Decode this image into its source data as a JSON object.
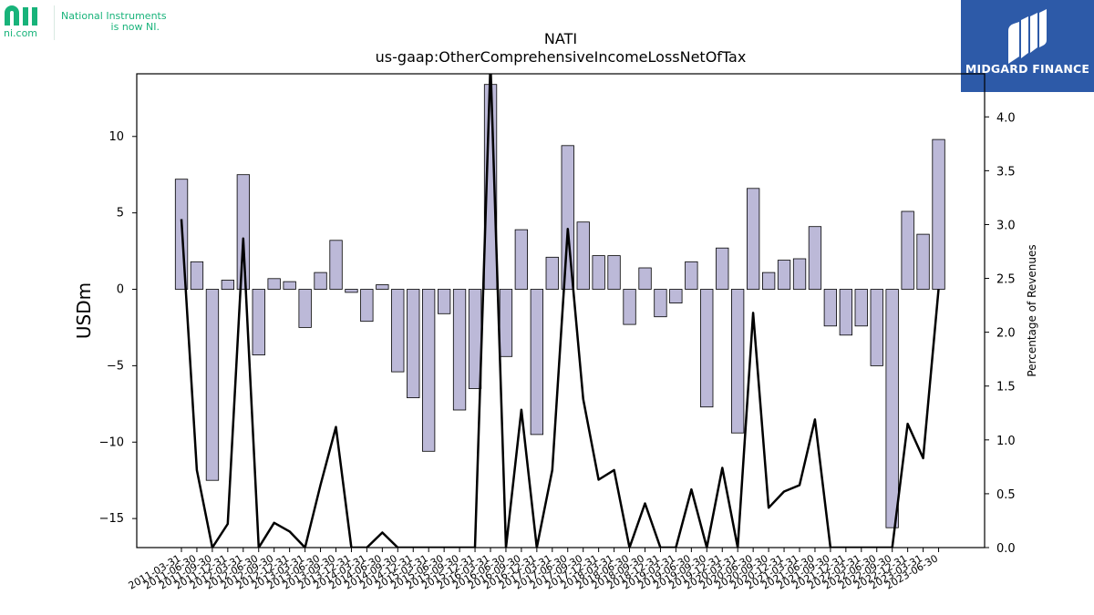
{
  "branding": {
    "ni_mark": "ni",
    "ni_domain": "ni.com",
    "ni_tagline_1": "National Instruments",
    "ni_tagline_2": "is now NI.",
    "midgard_name": "MIDGARD FINANCE"
  },
  "colors": {
    "bar_fill": "#bcb9d8",
    "line": "#000000",
    "ni_green": "#18b37a",
    "midgard_blue": "#2d5aa8"
  },
  "chart_data": {
    "type": "bar",
    "title": "NATI",
    "subtitle": "us-gaap:OtherComprehensiveIncomeLossNetOfTax",
    "ylabel": "USDm",
    "y2label": "Percentage of Revenues",
    "ylim": [
      -16.9,
      14.1
    ],
    "y2lim": [
      0,
      4.4
    ],
    "yticks": [
      -15,
      -10,
      -5,
      0,
      5,
      10
    ],
    "y2ticks": [
      0.0,
      0.5,
      1.0,
      1.5,
      2.0,
      2.5,
      3.0,
      3.5,
      4.0
    ],
    "grid": false,
    "categories": [
      "2011-03-31",
      "2011-06-30",
      "2011-09-30",
      "2011-12-31",
      "2012-03-31",
      "2012-06-30",
      "2012-09-30",
      "2012-12-31",
      "2013-03-31",
      "2013-06-30",
      "2013-09-30",
      "2013-12-31",
      "2014-03-31",
      "2014-06-30",
      "2014-09-30",
      "2014-12-31",
      "2015-03-31",
      "2015-06-30",
      "2015-09-30",
      "2015-12-31",
      "2016-03-31",
      "2016-06-30",
      "2016-09-30",
      "2016-12-31",
      "2017-03-31",
      "2017-06-30",
      "2017-09-30",
      "2017-12-31",
      "2018-03-31",
      "2018-06-30",
      "2018-09-30",
      "2018-12-31",
      "2019-03-31",
      "2019-06-30",
      "2019-09-30",
      "2019-12-31",
      "2020-03-31",
      "2020-06-30",
      "2020-09-30",
      "2020-12-31",
      "2021-03-31",
      "2021-06-30",
      "2021-09-30",
      "2021-12-31",
      "2022-03-31",
      "2022-06-30",
      "2022-09-30",
      "2022-12-31",
      "2023-03-31",
      "2023-06-30"
    ],
    "series": [
      {
        "kind": "bar",
        "axis": "left",
        "values": [
          7.2,
          1.8,
          -12.5,
          0.6,
          7.5,
          -4.3,
          0.7,
          0.5,
          -2.5,
          1.1,
          3.2,
          -0.2,
          -2.1,
          0.3,
          -5.4,
          -7.1,
          -10.6,
          -1.6,
          -7.9,
          -6.5,
          13.4,
          -4.4,
          3.9,
          -9.5,
          2.1,
          9.4,
          4.4,
          2.2,
          2.2,
          -2.3,
          1.4,
          -1.8,
          -0.9,
          1.8,
          -7.7,
          2.7,
          -9.4,
          6.6,
          1.1,
          1.9,
          2.0,
          4.1,
          -2.4,
          -3.0,
          -2.4,
          -5.0,
          -15.6,
          5.1,
          3.6,
          9.8
        ]
      },
      {
        "kind": "line",
        "axis": "right",
        "values": [
          3.05,
          0.72,
          0.0,
          0.22,
          2.87,
          0.0,
          0.23,
          0.15,
          0.0,
          0.58,
          1.12,
          0.0,
          0.0,
          0.14,
          0.0,
          0.0,
          0.0,
          0.0,
          0.0,
          0.0,
          4.5,
          0.0,
          1.28,
          0.0,
          0.72,
          2.96,
          1.38,
          0.63,
          0.72,
          0.0,
          0.41,
          0.0,
          0.0,
          0.54,
          0.0,
          0.74,
          0.0,
          2.18,
          0.37,
          0.52,
          0.58,
          1.19,
          0.0,
          0.0,
          0.0,
          0.0,
          0.0,
          1.15,
          0.83,
          2.4
        ]
      }
    ]
  }
}
